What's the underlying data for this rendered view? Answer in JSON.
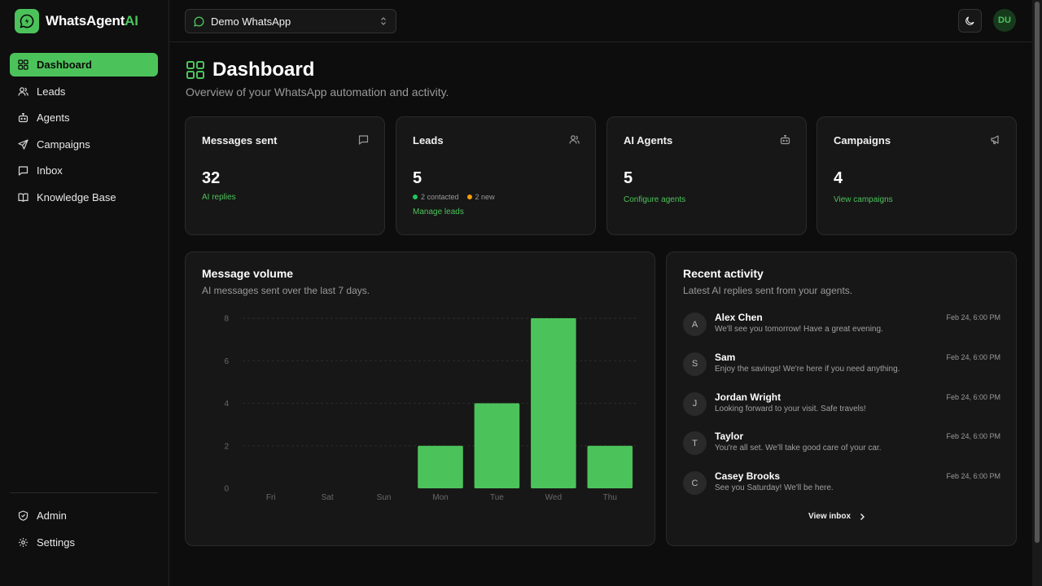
{
  "brand": {
    "name_main": "WhatsAgent",
    "name_accent": "AI",
    "accent_color": "#4cc35a"
  },
  "sidebar": {
    "items": [
      {
        "label": "Dashboard",
        "icon": "dashboard-icon",
        "active": true
      },
      {
        "label": "Leads",
        "icon": "users-icon"
      },
      {
        "label": "Agents",
        "icon": "bot-icon"
      },
      {
        "label": "Campaigns",
        "icon": "send-icon"
      },
      {
        "label": "Inbox",
        "icon": "message-icon"
      },
      {
        "label": "Knowledge Base",
        "icon": "book-icon"
      }
    ],
    "bottom_items": [
      {
        "label": "Admin",
        "icon": "shield-icon"
      },
      {
        "label": "Settings",
        "icon": "gear-icon"
      }
    ]
  },
  "header": {
    "workspace": "Demo WhatsApp",
    "avatar_initials": "DU"
  },
  "page": {
    "title": "Dashboard",
    "subtitle": "Overview of your WhatsApp automation and activity."
  },
  "stats": {
    "messages": {
      "title": "Messages sent",
      "value": "32",
      "link": "AI replies"
    },
    "leads": {
      "title": "Leads",
      "value": "5",
      "contacted": "2 contacted",
      "new": "2 new",
      "link": "Manage leads"
    },
    "agents": {
      "title": "AI Agents",
      "value": "5",
      "link": "Configure agents"
    },
    "campaigns": {
      "title": "Campaigns",
      "value": "4",
      "link": "View campaigns"
    }
  },
  "volume_panel": {
    "title": "Message volume",
    "desc": "AI messages sent over the last 7 days."
  },
  "chart_data": {
    "type": "bar",
    "title": "Message volume",
    "subtitle": "AI messages sent over the last 7 days.",
    "categories": [
      "Fri",
      "Sat",
      "Sun",
      "Mon",
      "Tue",
      "Wed",
      "Thu"
    ],
    "values": [
      0,
      0,
      0,
      2,
      4,
      8,
      2
    ],
    "yticks": [
      0,
      2,
      4,
      6,
      8
    ],
    "ylim": [
      0,
      8
    ],
    "grid": true,
    "bar_color": "#4cc35a"
  },
  "activity_panel": {
    "title": "Recent activity",
    "desc": "Latest AI replies sent from your agents.",
    "items": [
      {
        "initial": "A",
        "name": "Alex Chen",
        "message": "We'll see you tomorrow! Have a great evening.",
        "time": "Feb 24, 6:00 PM"
      },
      {
        "initial": "S",
        "name": "Sam",
        "message": "Enjoy the savings! We're here if you need anything.",
        "time": "Feb 24, 6:00 PM"
      },
      {
        "initial": "J",
        "name": "Jordan Wright",
        "message": "Looking forward to your visit. Safe travels!",
        "time": "Feb 24, 6:00 PM"
      },
      {
        "initial": "T",
        "name": "Taylor",
        "message": "You're all set. We'll take good care of your car.",
        "time": "Feb 24, 6:00 PM"
      },
      {
        "initial": "C",
        "name": "Casey Brooks",
        "message": "See you Saturday! We'll be here.",
        "time": "Feb 24, 6:00 PM"
      }
    ],
    "view_inbox": "View inbox"
  }
}
